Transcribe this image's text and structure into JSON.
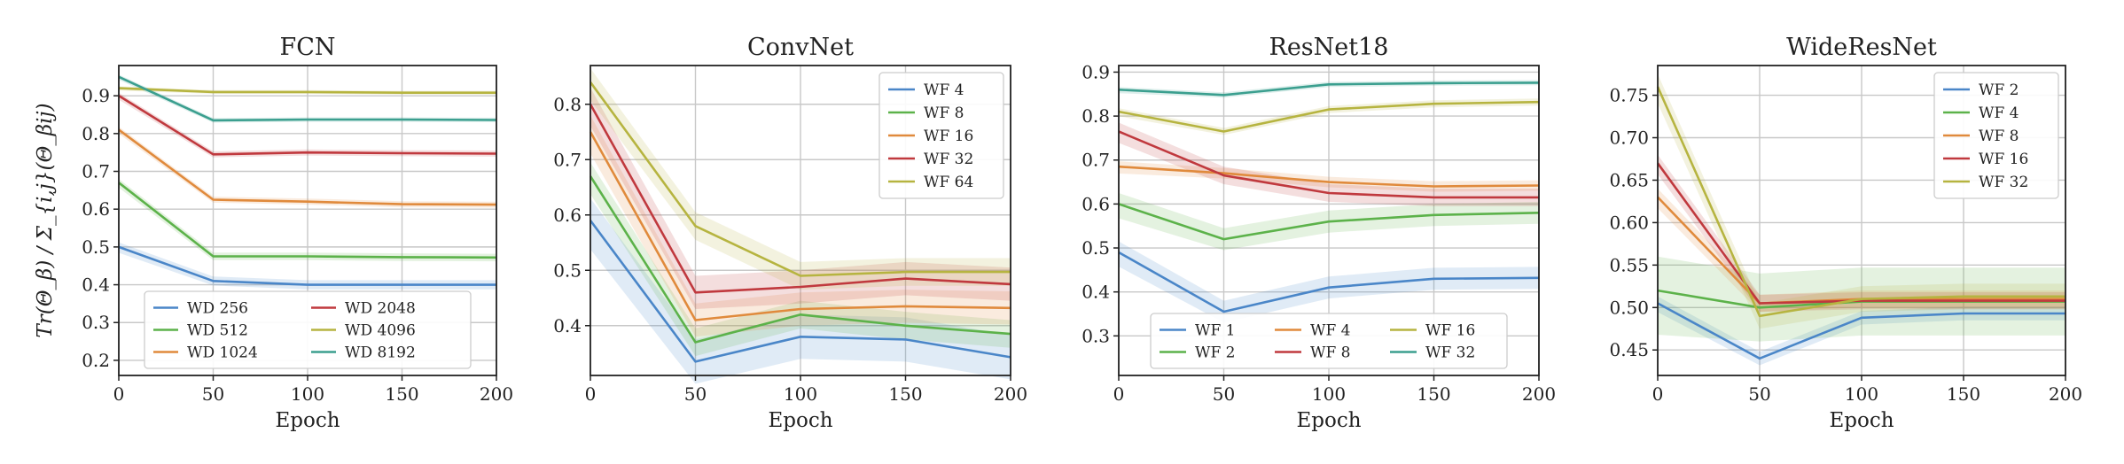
{
  "figure": {
    "ylabel": "Tr(Θ_β) / Σ_{i,j}(Θ_βij)"
  },
  "chart_data": [
    {
      "type": "line",
      "title": "FCN",
      "xlabel": "Epoch",
      "ylabel": "Tr(Θβ) / Σi,j(Θβij)",
      "x": [
        0,
        50,
        100,
        150,
        200
      ],
      "xlim": [
        0,
        200
      ],
      "ylim": [
        0.16,
        0.98
      ],
      "xticks": [
        0,
        50,
        100,
        150,
        200
      ],
      "yticks": [
        0.2,
        0.3,
        0.4,
        0.5,
        0.6,
        0.7,
        0.8,
        0.9
      ],
      "ytick_labels": [
        "0.2",
        "0.3",
        "0.4",
        "0.5",
        "0.6",
        "0.7",
        "0.8",
        "0.9"
      ],
      "grid": true,
      "legend": {
        "position": "lower-center",
        "columns": 2
      },
      "series": [
        {
          "name": "WD 256",
          "color": "#4a86c8",
          "values": [
            0.5,
            0.41,
            0.4,
            0.4,
            0.4
          ],
          "band": 0.012
        },
        {
          "name": "WD 512",
          "color": "#5cb24a",
          "values": [
            0.67,
            0.475,
            0.475,
            0.473,
            0.472
          ],
          "band": 0.01
        },
        {
          "name": "WD 1024",
          "color": "#e08a3c",
          "values": [
            0.81,
            0.625,
            0.62,
            0.613,
            0.612
          ],
          "band": 0.008
        },
        {
          "name": "WD 2048",
          "color": "#c0393e",
          "values": [
            0.9,
            0.745,
            0.75,
            0.748,
            0.747
          ],
          "band": 0.008
        },
        {
          "name": "WD 4096",
          "color": "#b6b440",
          "values": [
            0.92,
            0.91,
            0.91,
            0.908,
            0.908
          ],
          "band": 0.005
        },
        {
          "name": "WD 8192",
          "color": "#3b9f8f",
          "values": [
            0.95,
            0.835,
            0.837,
            0.837,
            0.836
          ],
          "band": 0.006
        }
      ]
    },
    {
      "type": "line",
      "title": "ConvNet",
      "xlabel": "Epoch",
      "x": [
        0,
        50,
        100,
        150,
        200
      ],
      "xlim": [
        0,
        200
      ],
      "ylim": [
        0.31,
        0.87
      ],
      "xticks": [
        0,
        50,
        100,
        150,
        200
      ],
      "yticks": [
        0.4,
        0.5,
        0.6,
        0.7,
        0.8
      ],
      "ytick_labels": [
        "0.4",
        "0.5",
        "0.6",
        "0.7",
        "0.8"
      ],
      "grid": true,
      "legend": {
        "position": "top-right",
        "columns": 1
      },
      "series": [
        {
          "name": "WF 4",
          "color": "#4a86c8",
          "values": [
            0.59,
            0.335,
            0.38,
            0.375,
            0.343
          ],
          "band": 0.04
        },
        {
          "name": "WF 8",
          "color": "#5cb24a",
          "values": [
            0.67,
            0.37,
            0.42,
            0.4,
            0.385
          ],
          "band": 0.025
        },
        {
          "name": "WF 16",
          "color": "#e08a3c",
          "values": [
            0.75,
            0.41,
            0.43,
            0.435,
            0.432
          ],
          "band": 0.03
        },
        {
          "name": "WF 32",
          "color": "#c0393e",
          "values": [
            0.8,
            0.46,
            0.47,
            0.485,
            0.475
          ],
          "band": 0.03
        },
        {
          "name": "WF 64",
          "color": "#b6b440",
          "values": [
            0.84,
            0.58,
            0.49,
            0.497,
            0.497
          ],
          "band": 0.025
        }
      ]
    },
    {
      "type": "line",
      "title": "ResNet18",
      "xlabel": "Epoch",
      "x": [
        0,
        50,
        100,
        150,
        200
      ],
      "xlim": [
        0,
        200
      ],
      "ylim": [
        0.21,
        0.915
      ],
      "xticks": [
        0,
        50,
        100,
        150,
        200
      ],
      "yticks": [
        0.3,
        0.4,
        0.5,
        0.6,
        0.7,
        0.8,
        0.9
      ],
      "ytick_labels": [
        "0.3",
        "0.4",
        "0.5",
        "0.6",
        "0.7",
        "0.8",
        "0.9"
      ],
      "grid": true,
      "legend": {
        "position": "lower-center",
        "columns": 3
      },
      "series": [
        {
          "name": "WF 1",
          "color": "#4a86c8",
          "values": [
            0.49,
            0.355,
            0.41,
            0.43,
            0.432
          ],
          "band": 0.025
        },
        {
          "name": "WF 2",
          "color": "#5cb24a",
          "values": [
            0.6,
            0.52,
            0.56,
            0.575,
            0.58
          ],
          "band": 0.025
        },
        {
          "name": "WF 4",
          "color": "#e08a3c",
          "values": [
            0.685,
            0.67,
            0.65,
            0.64,
            0.642
          ],
          "band": 0.012
        },
        {
          "name": "WF 8",
          "color": "#c0393e",
          "values": [
            0.765,
            0.665,
            0.625,
            0.615,
            0.615
          ],
          "band": 0.02
        },
        {
          "name": "WF 16",
          "color": "#b6b440",
          "values": [
            0.81,
            0.765,
            0.815,
            0.828,
            0.832
          ],
          "band": 0.008
        },
        {
          "name": "WF 32",
          "color": "#3b9f8f",
          "values": [
            0.86,
            0.848,
            0.872,
            0.875,
            0.876
          ],
          "band": 0.006
        }
      ]
    },
    {
      "type": "line",
      "title": "WideResNet",
      "xlabel": "Epoch",
      "x": [
        0,
        50,
        100,
        150,
        200
      ],
      "xlim": [
        0,
        200
      ],
      "ylim": [
        0.42,
        0.785
      ],
      "xticks": [
        0,
        50,
        100,
        150,
        200
      ],
      "yticks": [
        0.45,
        0.5,
        0.55,
        0.6,
        0.65,
        0.7,
        0.75
      ],
      "ytick_labels": [
        "0.45",
        "0.50",
        "0.55",
        "0.60",
        "0.65",
        "0.70",
        "0.75"
      ],
      "grid": true,
      "legend": {
        "position": "top-right",
        "columns": 1
      },
      "series": [
        {
          "name": "WF 2",
          "color": "#4a86c8",
          "values": [
            0.505,
            0.44,
            0.488,
            0.493,
            0.493
          ],
          "band": 0.008
        },
        {
          "name": "WF 4",
          "color": "#5cb24a",
          "values": [
            0.52,
            0.5,
            0.507,
            0.507,
            0.507
          ],
          "band": 0.04
        },
        {
          "name": "WF 8",
          "color": "#e08a3c",
          "values": [
            0.63,
            0.505,
            0.51,
            0.51,
            0.51
          ],
          "band": 0.01
        },
        {
          "name": "WF 16",
          "color": "#c0393e",
          "values": [
            0.67,
            0.505,
            0.508,
            0.508,
            0.508
          ],
          "band": 0.01
        },
        {
          "name": "WF 32",
          "color": "#b6b440",
          "values": [
            0.76,
            0.49,
            0.51,
            0.513,
            0.513
          ],
          "band": 0.015
        }
      ]
    }
  ]
}
